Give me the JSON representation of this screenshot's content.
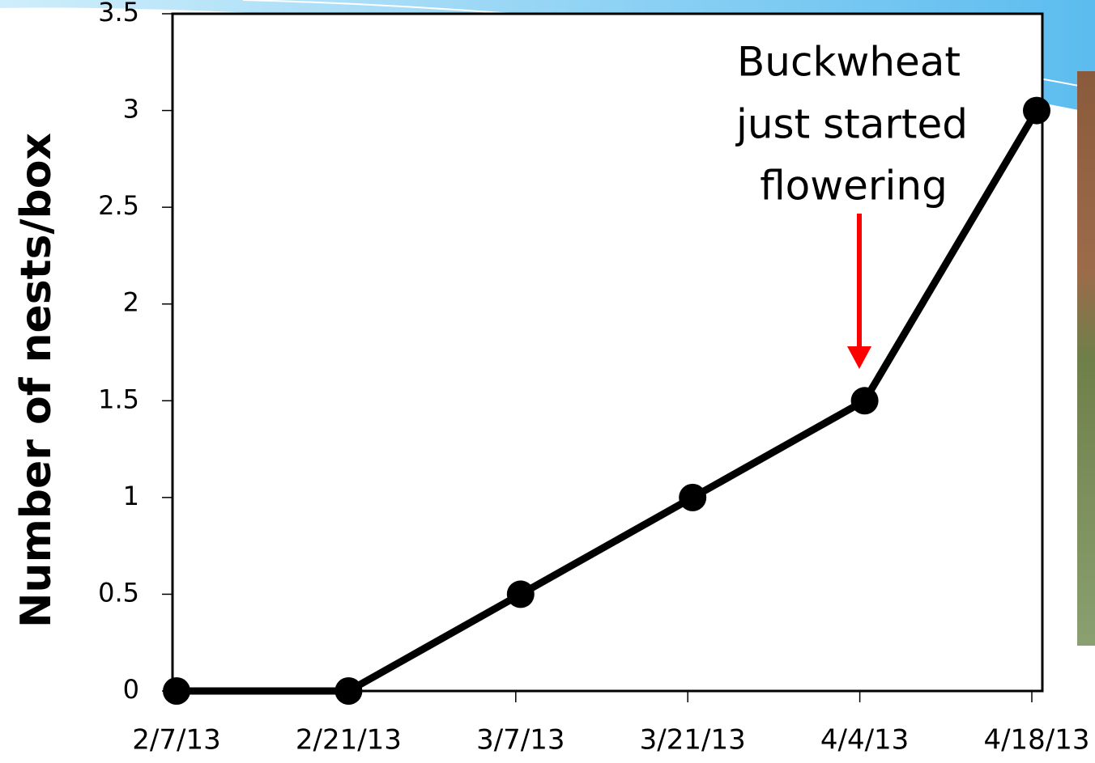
{
  "chart_data": {
    "type": "line",
    "y_label": "Number of nests/box",
    "annotation": [
      "Buckwheat",
      "just started",
      "flowering"
    ],
    "categories": [
      "2/7/13",
      "2/21/13",
      "3/7/13",
      "3/21/13",
      "4/4/13",
      "4/18/13"
    ],
    "values": [
      0,
      0,
      0.5,
      1,
      1.5,
      3
    ],
    "color": "#000000",
    "ylim": [
      0,
      3.5
    ],
    "yticks": [
      0,
      0.5,
      1,
      1.5,
      2,
      2.5,
      3,
      3.5
    ],
    "grid": false
  }
}
